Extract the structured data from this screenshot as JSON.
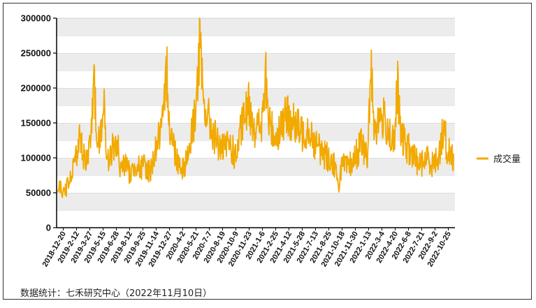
{
  "chart_data": {
    "type": "line",
    "ylim": [
      0,
      300000
    ],
    "y_ticks": [
      0,
      50000,
      100000,
      150000,
      200000,
      250000,
      300000
    ],
    "y_tick_labels": [
      "0",
      "50000",
      "100000",
      "150000",
      "200000",
      "250000",
      "300000"
    ],
    "x_tick_labels": [
      "2018-12-20",
      "2019-2-12",
      "2019-3-27",
      "2019-5-15",
      "2019-6-28",
      "2019-8-12",
      "2019-9-25",
      "2019-11-14",
      "2019-12-27",
      "2020-4-2",
      "2020-5-21",
      "2020-7-7",
      "2020-8-19",
      "2020-10-9",
      "2020-11-23",
      "2021-1-6",
      "2021-2-25",
      "2021-4-12",
      "2021-5-28",
      "2021-7-13",
      "2021-8-25",
      "2021-10-18",
      "2021-11-30",
      "2022-1-13",
      "2022-3-4",
      "2022-4-20",
      "2022-6-8",
      "2022-7-21",
      "2022-9-2",
      "2022-10-25"
    ],
    "grid": "horizontal bands",
    "legend_position": "right",
    "series": [
      {
        "name": "成交量",
        "color": "#f2a900",
        "anchors": [
          [
            0,
            60000
          ],
          [
            1,
            50000
          ],
          [
            2,
            75000
          ],
          [
            3,
            115000
          ],
          [
            3.5,
            130000
          ],
          [
            4,
            95000
          ],
          [
            5,
            125000
          ],
          [
            5.5,
            200000
          ],
          [
            6,
            125000
          ],
          [
            6.5,
            140000
          ],
          [
            7,
            185000
          ],
          [
            7.5,
            90000
          ],
          [
            8,
            110000
          ],
          [
            9,
            125000
          ],
          [
            9.5,
            80000
          ],
          [
            10,
            95000
          ],
          [
            11,
            75000
          ],
          [
            12,
            95000
          ],
          [
            12.5,
            80000
          ],
          [
            13,
            90000
          ],
          [
            14,
            80000
          ],
          [
            15,
            120000
          ],
          [
            16,
            150000
          ],
          [
            16.5,
            230000
          ],
          [
            17,
            140000
          ],
          [
            18,
            100000
          ],
          [
            19,
            85000
          ],
          [
            20,
            115000
          ],
          [
            21,
            180000
          ],
          [
            21.5,
            265000
          ],
          [
            22,
            180000
          ],
          [
            23,
            150000
          ],
          [
            24,
            125000
          ],
          [
            25,
            110000
          ],
          [
            26,
            120000
          ],
          [
            27,
            100000
          ],
          [
            28,
            150000
          ],
          [
            29,
            175000
          ],
          [
            30,
            140000
          ],
          [
            31,
            150000
          ],
          [
            31.5,
            215000
          ],
          [
            32,
            150000
          ],
          [
            33,
            130000
          ],
          [
            34,
            150000
          ],
          [
            35,
            160000
          ],
          [
            36,
            145000
          ],
          [
            37,
            135000
          ],
          [
            38,
            145000
          ],
          [
            39,
            120000
          ],
          [
            40,
            110000
          ],
          [
            41,
            100000
          ],
          [
            42,
            90000
          ],
          [
            42.5,
            55000
          ],
          [
            43,
            90000
          ],
          [
            44,
            85000
          ],
          [
            45,
            100000
          ],
          [
            46,
            120000
          ],
          [
            47,
            100000
          ],
          [
            47.5,
            240000
          ],
          [
            48,
            140000
          ],
          [
            49,
            160000
          ],
          [
            50,
            145000
          ],
          [
            51,
            115000
          ],
          [
            51.5,
            205000
          ],
          [
            52,
            130000
          ],
          [
            53,
            115000
          ],
          [
            54,
            100000
          ],
          [
            55,
            90000
          ],
          [
            56,
            100000
          ],
          [
            57,
            90000
          ],
          [
            58,
            110000
          ],
          [
            58.5,
            150000
          ],
          [
            59,
            110000
          ],
          [
            60,
            100000
          ]
        ]
      }
    ]
  },
  "source_text": "数据统计：七禾研究中心（2022年11月10日）"
}
